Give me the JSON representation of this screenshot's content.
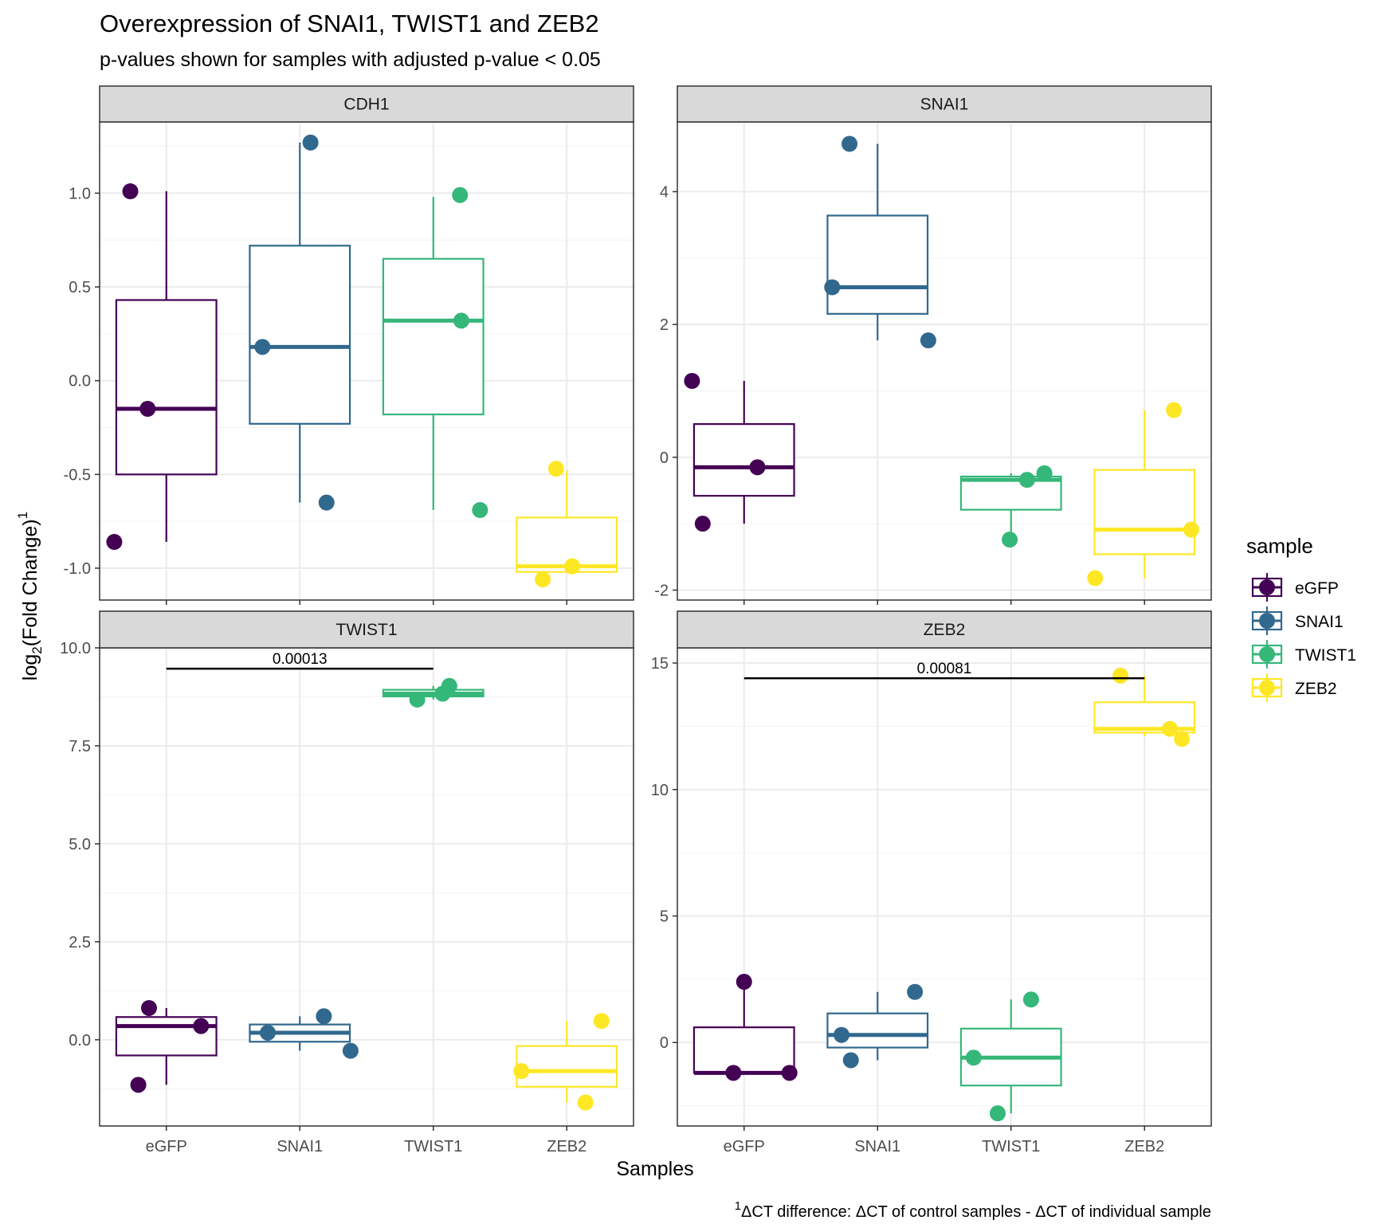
{
  "chart_data": {
    "type": "box",
    "title": "Overexpression of SNAI1, TWIST1 and ZEB2",
    "subtitle": "p-values shown for samples with adjusted p-value < 0.05",
    "xlabel": "Samples",
    "ylabel": "log2(Fold Change)1",
    "ylabel_parts": {
      "pre": "log",
      "sub": "2",
      "mid": "(Fold Change)",
      "sup": "1"
    },
    "caption": "1ΔCT difference: ΔCT of control samples - ΔCT of individual sample",
    "caption_parts": {
      "sup": "1",
      "text": "ΔCT difference: ΔCT of control samples - ΔCT of individual sample"
    },
    "categories": [
      "eGFP",
      "SNAI1",
      "TWIST1",
      "ZEB2"
    ],
    "legend": {
      "title": "sample",
      "position": "right",
      "entries": [
        {
          "name": "eGFP",
          "color": "#440154"
        },
        {
          "name": "SNAI1",
          "color": "#31688E"
        },
        {
          "name": "TWIST1",
          "color": "#35B779"
        },
        {
          "name": "ZEB2",
          "color": "#FDE725"
        }
      ]
    },
    "grid": true,
    "panels": [
      {
        "name": "CDH1",
        "ylim": [
          -1.17,
          1.38
        ],
        "yticks": [
          -1.0,
          -0.5,
          0.0,
          0.5,
          1.0
        ],
        "ytick_labels": [
          "-1.0",
          "-0.5",
          "0.0",
          "0.5",
          "1.0"
        ],
        "boxes": [
          {
            "sample": "eGFP",
            "lower_whisker": -0.86,
            "q1": -0.5,
            "median": -0.15,
            "q3": 0.43,
            "upper_whisker": 1.01
          },
          {
            "sample": "SNAI1",
            "lower_whisker": -0.65,
            "q1": -0.23,
            "median": 0.18,
            "q3": 0.72,
            "upper_whisker": 1.27
          },
          {
            "sample": "TWIST1",
            "lower_whisker": -0.69,
            "q1": -0.18,
            "median": 0.32,
            "q3": 0.65,
            "upper_whisker": 0.98
          },
          {
            "sample": "ZEB2",
            "lower_whisker": -1.02,
            "q1": -1.02,
            "median": -0.99,
            "q3": -0.73,
            "upper_whisker": -0.48
          }
        ],
        "points": [
          {
            "sample": "eGFP",
            "jitter": -0.39,
            "y": -0.86
          },
          {
            "sample": "eGFP",
            "jitter": -0.27,
            "y": 1.01
          },
          {
            "sample": "eGFP",
            "jitter": -0.14,
            "y": -0.15
          },
          {
            "sample": "SNAI1",
            "jitter": -0.28,
            "y": 0.18
          },
          {
            "sample": "SNAI1",
            "jitter": 0.08,
            "y": 1.27
          },
          {
            "sample": "SNAI1",
            "jitter": 0.2,
            "y": -0.65
          },
          {
            "sample": "TWIST1",
            "jitter": 0.2,
            "y": 0.99
          },
          {
            "sample": "TWIST1",
            "jitter": 0.21,
            "y": 0.32
          },
          {
            "sample": "TWIST1",
            "jitter": 0.35,
            "y": -0.69
          },
          {
            "sample": "ZEB2",
            "jitter": -0.18,
            "y": -1.06
          },
          {
            "sample": "ZEB2",
            "jitter": -0.08,
            "y": -0.47
          },
          {
            "sample": "ZEB2",
            "jitter": 0.04,
            "y": -0.99
          }
        ],
        "pvalues": []
      },
      {
        "name": "SNAI1",
        "ylim": [
          -2.15,
          5.05
        ],
        "yticks": [
          -2,
          0,
          2,
          4
        ],
        "ytick_labels": [
          "-2",
          "0",
          "2",
          "4"
        ],
        "boxes": [
          {
            "sample": "eGFP",
            "lower_whisker": -1.0,
            "q1": -0.58,
            "median": -0.15,
            "q3": 0.5,
            "upper_whisker": 1.15
          },
          {
            "sample": "SNAI1",
            "lower_whisker": 1.76,
            "q1": 2.16,
            "median": 2.56,
            "q3": 3.64,
            "upper_whisker": 4.72
          },
          {
            "sample": "TWIST1",
            "lower_whisker": -1.24,
            "q1": -0.79,
            "median": -0.34,
            "q3": -0.29,
            "upper_whisker": -0.24
          },
          {
            "sample": "ZEB2",
            "lower_whisker": -1.82,
            "q1": -1.46,
            "median": -1.09,
            "q3": -0.19,
            "upper_whisker": 0.71
          }
        ],
        "points": [
          {
            "sample": "eGFP",
            "jitter": -0.39,
            "y": 1.15
          },
          {
            "sample": "eGFP",
            "jitter": -0.31,
            "y": -1.0
          },
          {
            "sample": "eGFP",
            "jitter": 0.1,
            "y": -0.15
          },
          {
            "sample": "SNAI1",
            "jitter": -0.34,
            "y": 2.56
          },
          {
            "sample": "SNAI1",
            "jitter": -0.21,
            "y": 4.72
          },
          {
            "sample": "SNAI1",
            "jitter": 0.38,
            "y": 1.76
          },
          {
            "sample": "TWIST1",
            "jitter": -0.01,
            "y": -1.24
          },
          {
            "sample": "TWIST1",
            "jitter": 0.12,
            "y": -0.34
          },
          {
            "sample": "TWIST1",
            "jitter": 0.25,
            "y": -0.24
          },
          {
            "sample": "ZEB2",
            "jitter": -0.37,
            "y": -1.82
          },
          {
            "sample": "ZEB2",
            "jitter": 0.22,
            "y": 0.71
          },
          {
            "sample": "ZEB2",
            "jitter": 0.35,
            "y": -1.09
          }
        ],
        "pvalues": []
      },
      {
        "name": "TWIST1",
        "ylim": [
          -2.2,
          10.0
        ],
        "yticks": [
          0.0,
          2.5,
          5.0,
          7.5,
          10.0
        ],
        "ytick_labels": [
          "0.0",
          "2.5",
          "5.0",
          "7.5",
          "10.0"
        ],
        "boxes": [
          {
            "sample": "eGFP",
            "lower_whisker": -1.15,
            "q1": -0.4,
            "median": 0.35,
            "q3": 0.58,
            "upper_whisker": 0.81
          },
          {
            "sample": "SNAI1",
            "lower_whisker": -0.28,
            "q1": -0.05,
            "median": 0.18,
            "q3": 0.39,
            "upper_whisker": 0.6
          },
          {
            "sample": "TWIST1",
            "lower_whisker": 8.68,
            "q1": 8.76,
            "median": 8.83,
            "q3": 8.93,
            "upper_whisker": 9.03
          },
          {
            "sample": "ZEB2",
            "lower_whisker": -1.6,
            "q1": -1.2,
            "median": -0.8,
            "q3": -0.16,
            "upper_whisker": 0.48
          }
        ],
        "points": [
          {
            "sample": "eGFP",
            "jitter": -0.21,
            "y": -1.15
          },
          {
            "sample": "eGFP",
            "jitter": -0.13,
            "y": 0.81
          },
          {
            "sample": "eGFP",
            "jitter": 0.26,
            "y": 0.35
          },
          {
            "sample": "SNAI1",
            "jitter": -0.24,
            "y": 0.18
          },
          {
            "sample": "SNAI1",
            "jitter": 0.18,
            "y": 0.6
          },
          {
            "sample": "SNAI1",
            "jitter": 0.38,
            "y": -0.28
          },
          {
            "sample": "TWIST1",
            "jitter": -0.12,
            "y": 8.68
          },
          {
            "sample": "TWIST1",
            "jitter": 0.07,
            "y": 8.83
          },
          {
            "sample": "TWIST1",
            "jitter": 0.12,
            "y": 9.03
          },
          {
            "sample": "ZEB2",
            "jitter": -0.34,
            "y": -0.8
          },
          {
            "sample": "ZEB2",
            "jitter": 0.14,
            "y": -1.6
          },
          {
            "sample": "ZEB2",
            "jitter": 0.26,
            "y": 0.48
          }
        ],
        "pvalues": [
          {
            "from": "eGFP",
            "to": "TWIST1",
            "y": 9.47,
            "label": "0.00013"
          }
        ]
      },
      {
        "name": "ZEB2",
        "ylim": [
          -3.3,
          15.6
        ],
        "yticks": [
          0,
          5,
          10,
          15
        ],
        "ytick_labels": [
          "0",
          "5",
          "10",
          "15"
        ],
        "boxes": [
          {
            "sample": "eGFP",
            "lower_whisker": -1.2,
            "q1": -1.2,
            "median": -1.2,
            "q3": 0.6,
            "upper_whisker": 2.4
          },
          {
            "sample": "SNAI1",
            "lower_whisker": -0.7,
            "q1": -0.2,
            "median": 0.3,
            "q3": 1.15,
            "upper_whisker": 2.0
          },
          {
            "sample": "TWIST1",
            "lower_whisker": -2.8,
            "q1": -1.7,
            "median": -0.6,
            "q3": 0.55,
            "upper_whisker": 1.7
          },
          {
            "sample": "ZEB2",
            "lower_whisker": 12.1,
            "q1": 12.25,
            "median": 12.4,
            "q3": 13.45,
            "upper_whisker": 14.5
          }
        ],
        "points": [
          {
            "sample": "eGFP",
            "jitter": -0.08,
            "y": -1.2
          },
          {
            "sample": "eGFP",
            "jitter": 0.0,
            "y": 2.4
          },
          {
            "sample": "eGFP",
            "jitter": 0.34,
            "y": -1.2
          },
          {
            "sample": "SNAI1",
            "jitter": -0.27,
            "y": 0.3
          },
          {
            "sample": "SNAI1",
            "jitter": -0.2,
            "y": -0.7
          },
          {
            "sample": "SNAI1",
            "jitter": 0.28,
            "y": 2.0
          },
          {
            "sample": "TWIST1",
            "jitter": -0.28,
            "y": -0.6
          },
          {
            "sample": "TWIST1",
            "jitter": -0.1,
            "y": -2.8
          },
          {
            "sample": "TWIST1",
            "jitter": 0.15,
            "y": 1.7
          },
          {
            "sample": "ZEB2",
            "jitter": -0.18,
            "y": 14.5
          },
          {
            "sample": "ZEB2",
            "jitter": 0.19,
            "y": 12.4
          },
          {
            "sample": "ZEB2",
            "jitter": 0.28,
            "y": 12.0
          }
        ],
        "pvalues": [
          {
            "from": "eGFP",
            "to": "ZEB2",
            "y": 14.4,
            "label": "0.00081"
          }
        ]
      }
    ]
  }
}
